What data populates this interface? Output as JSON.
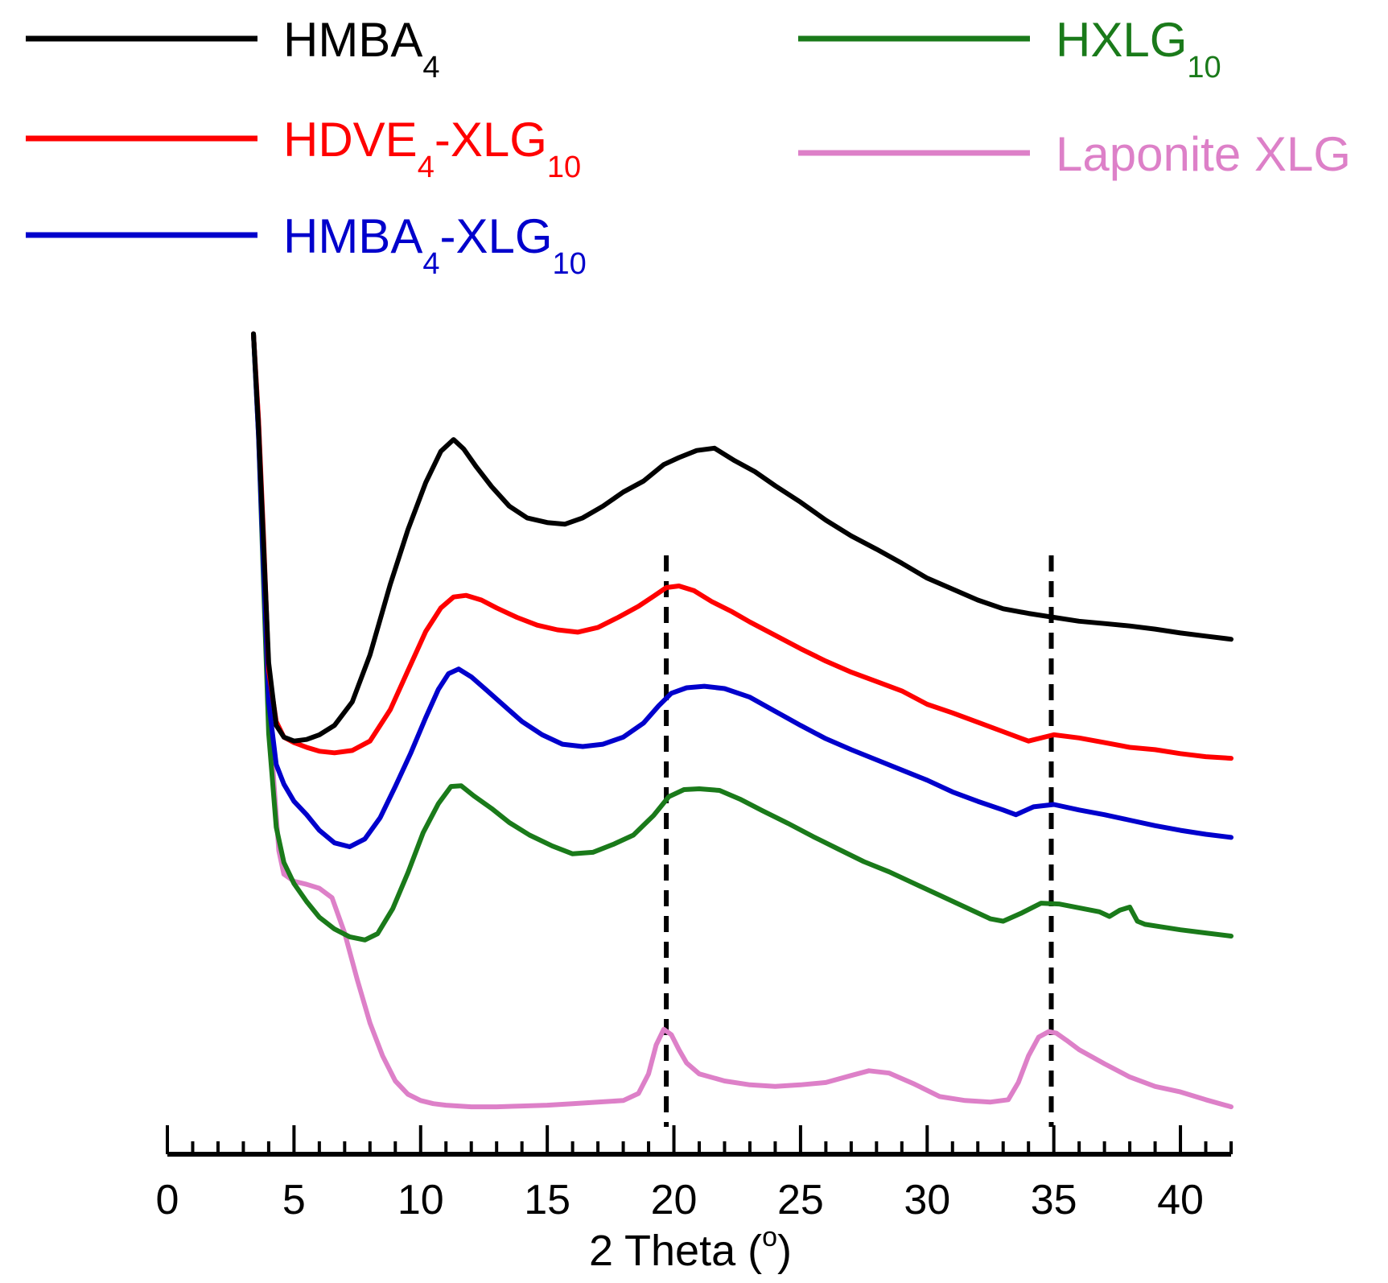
{
  "chart_data": {
    "type": "line",
    "title": "",
    "xlabel": "2 Theta (",
    "xlabel_unit_sup": "o",
    "xlabel_close": ")",
    "ylabel": "",
    "xlim": [
      0,
      42
    ],
    "xticks": [
      0,
      5,
      10,
      15,
      20,
      25,
      30,
      35,
      40
    ],
    "xtick_labels": [
      "0",
      "5",
      "10",
      "15",
      "20",
      "25",
      "30",
      "35",
      "40"
    ],
    "minor_tick_step": 1,
    "y_axis_shown": false,
    "ylim": [
      0,
      100
    ],
    "y_units": "arbitrary intensity (stacked, offset)",
    "reference_lines": [
      {
        "x": 19.7,
        "style": "dashed",
        "color": "#000000"
      },
      {
        "x": 34.9,
        "style": "dashed",
        "color": "#000000"
      }
    ],
    "series": [
      {
        "name": "HMBA",
        "sub": "4",
        "suffix": "",
        "suffix_sub": "",
        "color": "#000000",
        "x": [
          3.4,
          3.6,
          3.8,
          4.0,
          4.3,
          4.6,
          5.0,
          5.5,
          6.0,
          6.6,
          7.3,
          8.0,
          8.8,
          9.5,
          10.2,
          10.8,
          11.3,
          11.7,
          12.2,
          12.8,
          13.5,
          14.2,
          15.0,
          15.7,
          16.4,
          17.2,
          18.0,
          18.8,
          19.6,
          20.2,
          20.9,
          21.6,
          22.4,
          23.2,
          24.0,
          25.0,
          26.0,
          27.0,
          28.0,
          29.0,
          30.0,
          31.0,
          32.0,
          33.0,
          34.0,
          35.0,
          36.0,
          37.0,
          38.0,
          39.0,
          40.0,
          41.0,
          42.0
        ],
        "y": [
          99,
          87,
          72,
          57,
          49,
          47.5,
          47,
          47.2,
          47.8,
          49,
          52,
          58,
          67,
          74,
          80,
          84,
          85.5,
          84.3,
          82,
          79.5,
          77,
          75.5,
          74.9,
          74.7,
          75.5,
          77,
          78.8,
          80.2,
          82.3,
          83.2,
          84.1,
          84.4,
          82.8,
          81.4,
          79.6,
          77.5,
          75.2,
          73.2,
          71.5,
          69.7,
          67.8,
          66.4,
          65.0,
          63.9,
          63.3,
          62.8,
          62.3,
          62.0,
          61.7,
          61.3,
          60.8,
          60.4,
          60.0
        ]
      },
      {
        "name": "HDVE",
        "sub": "4",
        "suffix": "-XLG",
        "suffix_sub": "10",
        "color": "#ff0000",
        "x": [
          3.4,
          3.6,
          3.8,
          4.0,
          4.3,
          4.6,
          5.0,
          5.5,
          6.0,
          6.6,
          7.3,
          8.0,
          8.8,
          9.5,
          10.2,
          10.8,
          11.3,
          11.8,
          12.4,
          13.0,
          13.8,
          14.6,
          15.4,
          16.2,
          17.0,
          17.8,
          18.6,
          19.2,
          19.7,
          20.2,
          20.8,
          21.5,
          22.3,
          23.0,
          24.0,
          25.0,
          26.0,
          27.0,
          28.0,
          29.0,
          30.0,
          31.0,
          32.0,
          33.0,
          34.0,
          35.0,
          36.0,
          37.0,
          38.0,
          39.0,
          40.0,
          41.0,
          42.0
        ],
        "y": [
          99,
          88,
          73,
          56,
          49.5,
          47.5,
          46.8,
          46.2,
          45.7,
          45.5,
          45.8,
          47,
          51,
          56,
          61,
          64,
          65.4,
          65.6,
          65,
          64,
          62.8,
          61.8,
          61.2,
          60.9,
          61.5,
          62.8,
          64.2,
          65.5,
          66.6,
          66.8,
          66.2,
          64.8,
          63.5,
          62.2,
          60.5,
          58.8,
          57.2,
          55.8,
          54.6,
          53.4,
          51.7,
          50.6,
          49.4,
          48.2,
          47.0,
          47.8,
          47.4,
          46.8,
          46.2,
          45.9,
          45.4,
          45.0,
          44.8
        ]
      },
      {
        "name": "HMBA",
        "sub": "4",
        "suffix": "-XLG",
        "suffix_sub": "10",
        "color": "#0000cc",
        "x": [
          3.4,
          3.6,
          3.8,
          4.0,
          4.3,
          4.6,
          5.0,
          5.5,
          6.0,
          6.6,
          7.2,
          7.8,
          8.4,
          9.0,
          9.6,
          10.2,
          10.7,
          11.1,
          11.5,
          12.0,
          12.6,
          13.3,
          14.0,
          14.8,
          15.6,
          16.4,
          17.2,
          18.0,
          18.8,
          19.4,
          19.9,
          20.5,
          21.2,
          22.0,
          23.0,
          24.0,
          25.0,
          26.0,
          27.0,
          28.0,
          29.0,
          30.0,
          31.0,
          32.0,
          33.0,
          33.5,
          34.2,
          35.0,
          36.0,
          37.0,
          38.0,
          39.0,
          40.0,
          41.0,
          42.0
        ],
        "y": [
          99,
          86,
          69,
          52,
          44,
          41.5,
          39.3,
          37.6,
          35.6,
          34.0,
          33.5,
          34.5,
          37.2,
          41.2,
          45.4,
          50.0,
          53.6,
          55.6,
          56.2,
          55.2,
          53.5,
          51.5,
          49.5,
          47.8,
          46.6,
          46.3,
          46.6,
          47.5,
          49.3,
          51.5,
          53.1,
          53.8,
          54.0,
          53.7,
          52.6,
          50.8,
          49.0,
          47.3,
          45.9,
          44.6,
          43.3,
          42.0,
          40.5,
          39.3,
          38.2,
          37.6,
          38.6,
          38.9,
          38.2,
          37.6,
          36.9,
          36.2,
          35.6,
          35.1,
          34.7
        ]
      },
      {
        "name": "HXLG",
        "sub": "",
        "suffix": "",
        "suffix_sub": "10",
        "color": "#1a7a1a",
        "x": [
          3.4,
          3.6,
          3.8,
          4.0,
          4.3,
          4.6,
          5.0,
          5.5,
          6.0,
          6.6,
          7.2,
          7.8,
          8.3,
          8.9,
          9.5,
          10.1,
          10.7,
          11.2,
          11.6,
          12.1,
          12.8,
          13.5,
          14.3,
          15.2,
          16.0,
          16.8,
          17.6,
          18.4,
          19.2,
          19.8,
          20.4,
          21.0,
          21.8,
          22.6,
          23.5,
          24.5,
          25.5,
          26.5,
          27.5,
          28.5,
          29.5,
          30.5,
          31.5,
          32.5,
          33.0,
          33.7,
          34.5,
          35.2,
          36.0,
          36.8,
          37.2,
          37.6,
          38.0,
          38.3,
          38.6,
          39.2,
          40.0,
          41.0,
          42.0
        ],
        "y": [
          99,
          86,
          67,
          48,
          36,
          31.5,
          28.8,
          26.5,
          24.5,
          23.0,
          22.0,
          21.6,
          22.4,
          25.6,
          30.2,
          35.3,
          39.0,
          41.2,
          41.3,
          40.0,
          38.4,
          36.6,
          35.0,
          33.6,
          32.6,
          32.8,
          33.8,
          35.0,
          37.5,
          39.9,
          40.8,
          40.9,
          40.7,
          39.6,
          38.1,
          36.5,
          34.8,
          33.2,
          31.6,
          30.3,
          28.8,
          27.3,
          25.8,
          24.3,
          24.0,
          25.0,
          26.3,
          26.2,
          25.7,
          25.2,
          24.6,
          25.4,
          25.8,
          24.0,
          23.6,
          23.3,
          22.9,
          22.5,
          22.1
        ]
      },
      {
        "name": "Laponite XLG",
        "sub": "",
        "suffix": "",
        "suffix_sub": "",
        "color": "#dd80c8",
        "x": [
          3.4,
          3.6,
          3.8,
          4.0,
          4.2,
          4.4,
          4.6,
          5.0,
          5.5,
          6.0,
          6.5,
          7.0,
          7.5,
          8.0,
          8.5,
          9.0,
          9.5,
          10.0,
          10.5,
          11.0,
          12.0,
          13.0,
          14.0,
          15.0,
          16.0,
          17.0,
          18.0,
          18.6,
          19.0,
          19.3,
          19.6,
          19.9,
          20.2,
          20.5,
          21.0,
          22.0,
          23.0,
          24.0,
          25.0,
          26.0,
          27.0,
          27.7,
          28.5,
          29.5,
          30.5,
          31.5,
          32.5,
          33.2,
          33.6,
          34.0,
          34.4,
          34.8,
          35.1,
          35.5,
          36.0,
          37.0,
          38.0,
          39.0,
          40.0,
          41.0,
          42.0
        ],
        "y": [
          99,
          88,
          72,
          55,
          42,
          33,
          30,
          29.1,
          28.7,
          28.2,
          27.0,
          22.5,
          16.5,
          11.0,
          6.8,
          3.6,
          1.9,
          1.1,
          0.7,
          0.5,
          0.3,
          0.3,
          0.4,
          0.5,
          0.7,
          0.9,
          1.1,
          2.0,
          4.5,
          8.2,
          10.2,
          9.5,
          7.6,
          5.9,
          4.5,
          3.6,
          3.1,
          2.9,
          3.1,
          3.4,
          4.3,
          4.9,
          4.6,
          3.2,
          1.6,
          1.1,
          0.9,
          1.2,
          3.4,
          6.8,
          9.2,
          9.9,
          9.7,
          8.8,
          7.6,
          5.8,
          4.1,
          2.9,
          2.2,
          1.2,
          0.3
        ]
      }
    ],
    "legend": [
      {
        "name": "HMBA",
        "sub": "4",
        "suffix": "",
        "suffix_sub": "",
        "color": "#000000"
      },
      {
        "name": "HDVE",
        "sub": "4",
        "suffix": "-XLG",
        "suffix_sub": "10",
        "color": "#ff0000"
      },
      {
        "name": "HMBA",
        "sub": "4",
        "suffix": "-XLG",
        "suffix_sub": "10",
        "color": "#0000cc"
      },
      {
        "name": "HXLG",
        "sub": "",
        "suffix": "",
        "suffix_sub": "10",
        "color": "#1a7a1a"
      },
      {
        "name": "Laponite XLG",
        "sub": "",
        "suffix": "",
        "suffix_sub": "",
        "color": "#dd80c8"
      }
    ],
    "legend_position": "top"
  }
}
